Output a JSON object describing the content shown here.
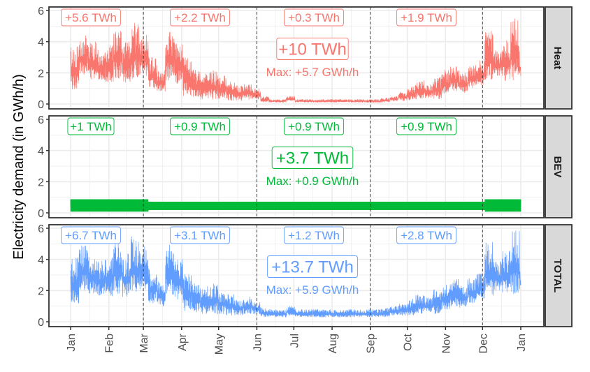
{
  "chart_data": {
    "type": "line",
    "ylabel": "Electricity demand (in GWh/h)",
    "xlabel": "",
    "ylim": [
      0,
      6
    ],
    "yticks": [
      0,
      2,
      4,
      6
    ],
    "xtick_labels": [
      "Jan",
      "Feb",
      "Mar",
      "Apr",
      "May",
      "Jun",
      "Jul",
      "Aug",
      "Sep",
      "Oct",
      "Nov",
      "Dec",
      "Jan"
    ],
    "xtick_days": [
      0,
      31,
      59,
      90,
      120,
      151,
      181,
      212,
      243,
      273,
      304,
      334,
      365
    ],
    "season_breaks": [
      "Mar",
      "Jun",
      "Sep",
      "Dec"
    ],
    "x_resolution": "weekly min/max envelope of hourly values",
    "panels": [
      {
        "name": "Heat",
        "color": "#F8766D",
        "total_label": "+10 TWh",
        "max_label": "Max: +5.7 GWh/h",
        "season_labels": [
          "+5.6 TWh",
          "+2.2 TWh",
          "+0.3 TWh",
          "+1.9 TWh"
        ],
        "weekly_low": [
          0.9,
          1.8,
          1.6,
          1.5,
          1.4,
          1.6,
          1.4,
          1.6,
          1.8,
          1.0,
          0.8,
          1.5,
          1.2,
          0.5,
          0.4,
          0.3,
          0.3,
          0.3,
          0.2,
          0.2,
          0.3,
          0.3,
          0.1,
          0.1,
          0.1,
          0.2,
          0.1,
          0.1,
          0.1,
          0.1,
          0.1,
          0.1,
          0.1,
          0.1,
          0.1,
          0.1,
          0.1,
          0.2,
          0.2,
          0.2,
          0.3,
          0.4,
          0.3,
          0.6,
          0.8,
          0.7,
          1.0,
          1.2,
          1.5,
          1.8,
          1.5,
          1.5,
          1.8
        ],
        "weekly_high": [
          3.8,
          4.5,
          4.0,
          3.5,
          3.8,
          4.8,
          4.0,
          5.2,
          4.5,
          3.0,
          2.2,
          4.8,
          4.0,
          3.0,
          2.2,
          2.0,
          2.2,
          1.8,
          1.6,
          1.2,
          1.3,
          1.0,
          0.5,
          0.3,
          0.3,
          0.5,
          0.3,
          0.3,
          0.3,
          0.3,
          0.3,
          0.3,
          0.3,
          0.3,
          0.3,
          0.3,
          0.4,
          0.5,
          0.8,
          1.2,
          1.5,
          1.3,
          1.8,
          2.2,
          2.5,
          2.0,
          2.5,
          2.8,
          4.8,
          3.5,
          4.2,
          5.6,
          3.0
        ]
      },
      {
        "name": "BEV",
        "color": "#00BA38",
        "total_label": "+3.7 TWh",
        "max_label": "Max: +0.9 GWh/h",
        "season_labels": [
          "+1 TWh",
          "+0.9 TWh",
          "+0.9 TWh",
          "+0.9 TWh"
        ],
        "weekly_low": [
          0.1,
          0.1,
          0.1,
          0.1,
          0.1,
          0.1,
          0.1,
          0.1,
          0.1,
          0.2,
          0.2,
          0.2,
          0.2,
          0.2,
          0.2,
          0.2,
          0.2,
          0.2,
          0.2,
          0.2,
          0.2,
          0.2,
          0.2,
          0.2,
          0.2,
          0.2,
          0.2,
          0.2,
          0.2,
          0.2,
          0.2,
          0.2,
          0.2,
          0.2,
          0.2,
          0.2,
          0.2,
          0.2,
          0.2,
          0.2,
          0.2,
          0.2,
          0.2,
          0.2,
          0.2,
          0.2,
          0.2,
          0.2,
          0.1,
          0.1,
          0.1,
          0.1,
          0.1
        ],
        "weekly_high": [
          0.85,
          0.85,
          0.85,
          0.85,
          0.85,
          0.85,
          0.85,
          0.85,
          0.85,
          0.7,
          0.7,
          0.7,
          0.7,
          0.7,
          0.7,
          0.7,
          0.7,
          0.7,
          0.7,
          0.7,
          0.7,
          0.7,
          0.7,
          0.7,
          0.7,
          0.7,
          0.7,
          0.7,
          0.7,
          0.7,
          0.7,
          0.7,
          0.7,
          0.7,
          0.7,
          0.7,
          0.7,
          0.7,
          0.7,
          0.7,
          0.7,
          0.7,
          0.7,
          0.7,
          0.7,
          0.7,
          0.7,
          0.7,
          0.85,
          0.85,
          0.85,
          0.85,
          0.85
        ]
      },
      {
        "name": "TOTAL",
        "color": "#619CFF",
        "total_label": "+13.7 TWh",
        "max_label": "Max: +5.9 GWh/h",
        "season_labels": [
          "+6.7 TWh",
          "+3.1 TWh",
          "+1.2 TWh",
          "+2.8 TWh"
        ],
        "weekly_low": [
          1.1,
          2.0,
          1.8,
          1.7,
          1.6,
          1.8,
          1.6,
          1.8,
          2.0,
          1.2,
          1.0,
          1.7,
          1.4,
          0.7,
          0.6,
          0.5,
          0.5,
          0.5,
          0.4,
          0.4,
          0.5,
          0.5,
          0.3,
          0.3,
          0.3,
          0.4,
          0.3,
          0.3,
          0.3,
          0.3,
          0.3,
          0.3,
          0.3,
          0.3,
          0.3,
          0.3,
          0.3,
          0.4,
          0.4,
          0.4,
          0.5,
          0.6,
          0.5,
          0.8,
          1.0,
          0.9,
          1.2,
          1.4,
          1.7,
          2.0,
          1.7,
          1.7,
          2.0
        ],
        "weekly_high": [
          4.2,
          4.9,
          4.4,
          3.9,
          4.2,
          5.2,
          4.4,
          5.5,
          4.9,
          3.4,
          2.6,
          5.0,
          4.3,
          3.3,
          2.5,
          2.3,
          2.5,
          2.1,
          1.9,
          1.5,
          1.6,
          1.3,
          0.9,
          0.8,
          0.8,
          1.0,
          0.8,
          0.8,
          0.8,
          0.8,
          0.8,
          0.8,
          0.8,
          0.8,
          0.8,
          0.8,
          0.9,
          1.0,
          1.2,
          1.5,
          1.8,
          1.6,
          2.1,
          2.5,
          2.8,
          2.3,
          2.8,
          3.1,
          5.2,
          3.9,
          4.6,
          5.9,
          3.4
        ]
      }
    ]
  }
}
